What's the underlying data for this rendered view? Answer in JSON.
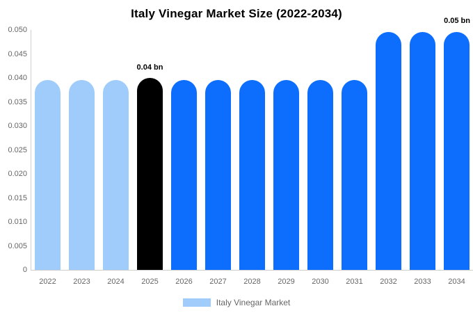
{
  "title": "Italy Vinegar Market Size (2022-2034)",
  "annotations": {
    "bar_annotation": {
      "text": "0.04 bn",
      "category": "2025"
    },
    "top_right_annotation": {
      "text": "0.05 bn",
      "category": "2034"
    }
  },
  "colors": {
    "light_blue": "#9fccfa",
    "blue": "#0d6efd",
    "black": "#000000",
    "axis_line": "#cfcfcf",
    "text_gray": "#666666",
    "title_text": "#000000"
  },
  "legend": {
    "items": [
      {
        "label": "Italy Vinegar Market",
        "swatch_color": "#9fccfa"
      }
    ]
  },
  "chart_data": {
    "type": "bar",
    "title": "Italy Vinegar Market Size (2022-2034)",
    "series_name": "Italy Vinegar Market",
    "categories": [
      "2022",
      "2023",
      "2024",
      "2025",
      "2026",
      "2027",
      "2028",
      "2029",
      "2030",
      "2031",
      "2032",
      "2033",
      "2034"
    ],
    "values": [
      0.0395,
      0.0395,
      0.0395,
      0.04,
      0.0395,
      0.0395,
      0.0395,
      0.0395,
      0.0395,
      0.0395,
      0.0495,
      0.0495,
      0.0495
    ],
    "bar_colors": [
      "#9fccfa",
      "#9fccfa",
      "#9fccfa",
      "#000000",
      "#0d6efd",
      "#0d6efd",
      "#0d6efd",
      "#0d6efd",
      "#0d6efd",
      "#0d6efd",
      "#0d6efd",
      "#0d6efd",
      "#0d6efd"
    ],
    "data_labels": [
      "",
      "",
      "",
      "0.04 bn",
      "",
      "",
      "",
      "",
      "",
      "",
      "",
      "",
      "0.05 bn"
    ],
    "xlabel": "",
    "ylabel": "",
    "ylim": [
      0,
      0.05
    ],
    "y_ticks": [
      "0.050",
      "0.045",
      "0.040",
      "0.035",
      "0.030",
      "0.025",
      "0.020",
      "0.015",
      "0.010",
      "0.005",
      "0"
    ],
    "grid": false,
    "legend_position": "bottom"
  }
}
